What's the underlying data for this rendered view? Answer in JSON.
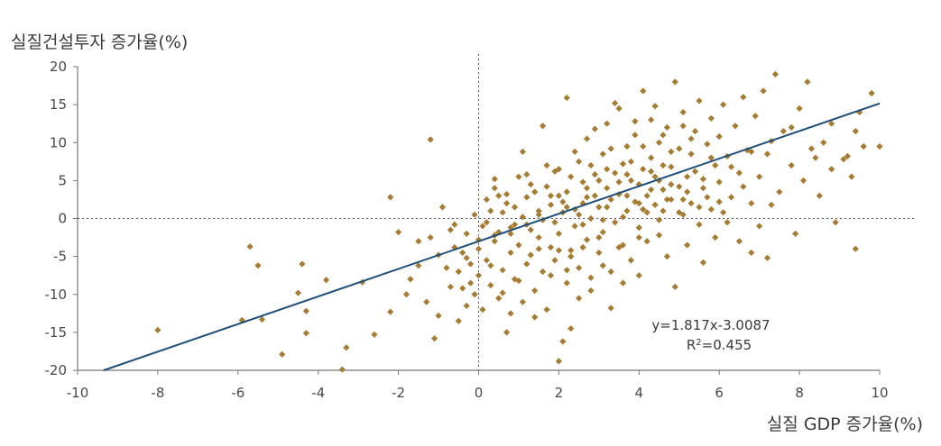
{
  "chart_data": {
    "type": "scatter",
    "title": "",
    "ylabel": "실질건설투자 증가율(%)",
    "xlabel": "실질 GDP 증가율(%)",
    "xlim": [
      -10,
      10
    ],
    "ylim": [
      -20,
      20
    ],
    "x_ticks": [
      "-10",
      "-8",
      "-6",
      "-4",
      "-2",
      "0",
      "2",
      "4",
      "6",
      "8",
      "10"
    ],
    "y_ticks": [
      "20",
      "15",
      "10",
      "5",
      "0",
      "-5",
      "-10",
      "-15",
      "-20"
    ],
    "reference_lines": {
      "x": 0,
      "y": 0,
      "style": "dotted"
    },
    "trendline": {
      "slope": 1.817,
      "intercept": -3.0087,
      "equation_label": "y=1.817x-3.0087",
      "r2_label_prefix": "R",
      "r2_label_sup": "2",
      "r2_label_value": "=0.455"
    },
    "colors": {
      "points": "#a47c35",
      "trendline": "#1f4e79",
      "axis": "#777777"
    },
    "points": [
      [
        -8.0,
        -14.7
      ],
      [
        -5.9,
        -13.4
      ],
      [
        -5.7,
        -3.7
      ],
      [
        -5.5,
        -6.2
      ],
      [
        -5.4,
        -13.3
      ],
      [
        -4.9,
        -17.9
      ],
      [
        -4.5,
        -9.8
      ],
      [
        -4.4,
        -6.0
      ],
      [
        -4.3,
        -12.2
      ],
      [
        -4.3,
        -15.1
      ],
      [
        -3.8,
        -8.1
      ],
      [
        -3.4,
        -19.9
      ],
      [
        -3.3,
        -17.0
      ],
      [
        -2.9,
        -8.4
      ],
      [
        -2.6,
        -15.3
      ],
      [
        -2.2,
        -12.3
      ],
      [
        -2.2,
        2.8
      ],
      [
        -2.0,
        -1.8
      ],
      [
        -1.8,
        -10.0
      ],
      [
        -1.7,
        -8.0
      ],
      [
        -1.5,
        -3.0
      ],
      [
        -1.5,
        -6.2
      ],
      [
        -1.3,
        -11.0
      ],
      [
        -1.2,
        10.4
      ],
      [
        -1.2,
        -2.5
      ],
      [
        -1.1,
        -15.8
      ],
      [
        -1.0,
        -4.8
      ],
      [
        -1.0,
        -12.8
      ],
      [
        -0.9,
        1.5
      ],
      [
        -0.8,
        -6.5
      ],
      [
        -0.7,
        -9.0
      ],
      [
        -0.7,
        -1.5
      ],
      [
        -0.6,
        -3.8
      ],
      [
        -0.5,
        -13.5
      ],
      [
        -0.5,
        -7.0
      ],
      [
        -0.4,
        -4.5
      ],
      [
        -0.3,
        -11.5
      ],
      [
        -0.3,
        -2.0
      ],
      [
        -0.2,
        -8.5
      ],
      [
        -0.2,
        -6.0
      ],
      [
        -0.1,
        0.5
      ],
      [
        -0.1,
        -10.0
      ],
      [
        0.0,
        -4.0
      ],
      [
        0.0,
        -7.5
      ],
      [
        0.1,
        -1.0
      ],
      [
        0.1,
        -12.0
      ],
      [
        0.2,
        2.5
      ],
      [
        0.2,
        -5.5
      ],
      [
        0.3,
        -8.8
      ],
      [
        0.3,
        1.0
      ],
      [
        0.4,
        -3.0
      ],
      [
        0.4,
        4.0
      ],
      [
        0.5,
        -10.5
      ],
      [
        0.5,
        -1.8
      ],
      [
        0.6,
        -6.8
      ],
      [
        0.6,
        0.8
      ],
      [
        0.7,
        3.2
      ],
      [
        0.7,
        -15.0
      ],
      [
        0.8,
        -4.5
      ],
      [
        0.8,
        -2.0
      ],
      [
        0.9,
        1.5
      ],
      [
        0.9,
        -8.0
      ],
      [
        1.0,
        -3.5
      ],
      [
        1.0,
        5.5
      ],
      [
        1.1,
        0.2
      ],
      [
        1.1,
        -11.0
      ],
      [
        1.2,
        -6.0
      ],
      [
        1.2,
        2.8
      ],
      [
        1.3,
        -1.5
      ],
      [
        1.3,
        -4.8
      ],
      [
        1.4,
        -9.5
      ],
      [
        1.4,
        3.5
      ],
      [
        1.5,
        -2.5
      ],
      [
        1.5,
        0.5
      ],
      [
        1.6,
        -7.0
      ],
      [
        1.6,
        12.2
      ],
      [
        1.7,
        4.2
      ],
      [
        1.7,
        -12.0
      ],
      [
        1.8,
        -3.8
      ],
      [
        1.8,
        1.8
      ],
      [
        1.9,
        -0.5
      ],
      [
        1.9,
        -5.5
      ],
      [
        2.0,
        6.5
      ],
      [
        2.0,
        -2.0
      ],
      [
        2.0,
        -18.8
      ],
      [
        2.1,
        -16.2
      ],
      [
        2.1,
        0.8
      ],
      [
        2.2,
        -8.5
      ],
      [
        2.2,
        3.5
      ],
      [
        2.2,
        15.9
      ],
      [
        2.3,
        -4.2
      ],
      [
        2.3,
        -14.5
      ],
      [
        2.4,
        1.2
      ],
      [
        2.4,
        -1.0
      ],
      [
        2.5,
        7.5
      ],
      [
        2.5,
        -6.5
      ],
      [
        2.6,
        2.0
      ],
      [
        2.6,
        4.8
      ],
      [
        2.7,
        -2.8
      ],
      [
        2.7,
        10.5
      ],
      [
        2.8,
        0.0
      ],
      [
        2.8,
        -9.5
      ],
      [
        2.9,
        3.0
      ],
      [
        2.9,
        5.8
      ],
      [
        3.0,
        -4.5
      ],
      [
        3.0,
        1.5
      ],
      [
        3.1,
        8.5
      ],
      [
        3.1,
        -1.8
      ],
      [
        3.2,
        12.5
      ],
      [
        3.2,
        4.0
      ],
      [
        3.3,
        -7.0
      ],
      [
        3.3,
        2.5
      ],
      [
        3.4,
        6.0
      ],
      [
        3.4,
        -0.5
      ],
      [
        3.5,
        14.5
      ],
      [
        3.5,
        3.2
      ],
      [
        3.6,
        -3.5
      ],
      [
        3.6,
        7.2
      ],
      [
        3.7,
        1.0
      ],
      [
        3.7,
        9.5
      ],
      [
        3.8,
        5.0
      ],
      [
        3.8,
        -5.5
      ],
      [
        3.9,
        2.2
      ],
      [
        3.9,
        11.0
      ],
      [
        4.0,
        4.5
      ],
      [
        4.0,
        -1.2
      ],
      [
        4.0,
        -7.5
      ],
      [
        4.1,
        16.8
      ],
      [
        4.1,
        6.5
      ],
      [
        4.2,
        3.0
      ],
      [
        4.2,
        -3.0
      ],
      [
        4.3,
        8.0
      ],
      [
        4.3,
        13.0
      ],
      [
        4.4,
        1.8
      ],
      [
        4.4,
        5.5
      ],
      [
        4.5,
        -2.2
      ],
      [
        4.5,
        10.0
      ],
      [
        4.6,
        7.0
      ],
      [
        4.6,
        3.8
      ],
      [
        4.7,
        -5.0
      ],
      [
        4.7,
        12.0
      ],
      [
        4.8,
        2.5
      ],
      [
        4.8,
        6.8
      ],
      [
        4.9,
        -9.0
      ],
      [
        4.9,
        18.0
      ],
      [
        5.0,
        4.2
      ],
      [
        5.0,
        9.2
      ],
      [
        5.1,
        0.5
      ],
      [
        5.1,
        14.0
      ],
      [
        5.2,
        5.5
      ],
      [
        5.2,
        -3.5
      ],
      [
        5.3,
        8.5
      ],
      [
        5.3,
        2.0
      ],
      [
        5.4,
        11.5
      ],
      [
        5.4,
        6.2
      ],
      [
        5.5,
        -0.8
      ],
      [
        5.5,
        15.5
      ],
      [
        5.6,
        4.0
      ],
      [
        5.6,
        -5.8
      ],
      [
        5.7,
        9.8
      ],
      [
        5.8,
        1.2
      ],
      [
        5.8,
        13.2
      ],
      [
        5.9,
        7.0
      ],
      [
        5.9,
        -2.5
      ],
      [
        6.0,
        10.8
      ],
      [
        6.0,
        4.8
      ],
      [
        6.1,
        15.0
      ],
      [
        6.2,
        -0.5
      ],
      [
        6.2,
        8.2
      ],
      [
        6.3,
        2.8
      ],
      [
        6.4,
        12.2
      ],
      [
        6.5,
        -3.0
      ],
      [
        6.5,
        6.0
      ],
      [
        6.6,
        16.0
      ],
      [
        6.7,
        9.0
      ],
      [
        6.8,
        -4.5
      ],
      [
        6.8,
        2.0
      ],
      [
        6.9,
        13.5
      ],
      [
        7.0,
        5.5
      ],
      [
        7.0,
        -1.0
      ],
      [
        7.1,
        16.8
      ],
      [
        7.2,
        8.5
      ],
      [
        7.2,
        -5.2
      ],
      [
        7.4,
        19.0
      ],
      [
        7.5,
        3.5
      ],
      [
        7.6,
        11.5
      ],
      [
        7.8,
        7.0
      ],
      [
        7.9,
        -2.0
      ],
      [
        8.0,
        14.5
      ],
      [
        8.1,
        5.0
      ],
      [
        8.2,
        18.0
      ],
      [
        8.4,
        8.0
      ],
      [
        8.5,
        3.0
      ],
      [
        8.6,
        10.0
      ],
      [
        8.8,
        6.5
      ],
      [
        8.9,
        -0.5
      ],
      [
        9.1,
        7.8
      ],
      [
        9.3,
        5.5
      ],
      [
        9.4,
        -4.0
      ],
      [
        9.4,
        11.5
      ],
      [
        9.5,
        14.0
      ],
      [
        9.6,
        9.5
      ],
      [
        9.8,
        16.5
      ],
      [
        10.0,
        9.5
      ],
      [
        -0.4,
        -9.2
      ],
      [
        0.6,
        -9.8
      ],
      [
        1.0,
        -8.2
      ],
      [
        1.5,
        -4.0
      ],
      [
        2.3,
        -5.0
      ],
      [
        2.6,
        -3.8
      ],
      [
        3.1,
        -6.2
      ],
      [
        3.6,
        -8.5
      ],
      [
        0.2,
        -0.5
      ],
      [
        0.7,
        2.0
      ],
      [
        1.3,
        4.5
      ],
      [
        1.9,
        6.2
      ],
      [
        2.4,
        8.8
      ],
      [
        2.9,
        11.8
      ],
      [
        3.4,
        15.2
      ],
      [
        3.9,
        12.8
      ],
      [
        4.4,
        14.8
      ],
      [
        1.1,
        8.8
      ],
      [
        0.4,
        5.2
      ],
      [
        0.9,
        -0.8
      ],
      [
        1.6,
        -0.2
      ],
      [
        2.1,
        2.2
      ],
      [
        2.7,
        4.0
      ],
      [
        3.2,
        1.5
      ],
      [
        3.7,
        3.0
      ],
      [
        4.2,
        0.8
      ],
      [
        4.7,
        2.5
      ],
      [
        5.2,
        3.5
      ],
      [
        5.7,
        2.8
      ],
      [
        6.1,
        0.8
      ],
      [
        6.6,
        4.2
      ],
      [
        7.3,
        1.8
      ],
      [
        -0.6,
        -0.8
      ],
      [
        -0.3,
        -5.2
      ],
      [
        0.0,
        -2.8
      ],
      [
        0.3,
        -6.2
      ],
      [
        0.8,
        -12.5
      ],
      [
        1.4,
        -13.0
      ],
      [
        2.5,
        -10.5
      ],
      [
        3.3,
        -11.8
      ],
      [
        1.8,
        -7.5
      ],
      [
        2.0,
        -4.2
      ],
      [
        2.2,
        -6.8
      ],
      [
        2.8,
        -7.8
      ],
      [
        3.0,
        -2.5
      ],
      [
        3.5,
        -3.8
      ],
      [
        4.0,
        -2.5
      ],
      [
        4.5,
        -0.2
      ],
      [
        5.0,
        0.8
      ],
      [
        5.5,
        1.5
      ],
      [
        6.0,
        2.2
      ],
      [
        4.1,
        9.5
      ],
      [
        4.6,
        11.0
      ],
      [
        5.1,
        12.2
      ],
      [
        3.3,
        9.2
      ],
      [
        2.8,
        7.0
      ],
      [
        2.3,
        5.5
      ],
      [
        1.7,
        7.0
      ],
      [
        1.2,
        5.8
      ],
      [
        0.5,
        3.0
      ],
      [
        3.8,
        7.5
      ],
      [
        4.3,
        6.2
      ],
      [
        4.8,
        8.8
      ],
      [
        5.3,
        10.5
      ],
      [
        5.8,
        8.0
      ],
      [
        6.3,
        6.8
      ],
      [
        6.8,
        8.8
      ],
      [
        7.3,
        10.2
      ],
      [
        7.8,
        12.0
      ],
      [
        8.3,
        9.2
      ],
      [
        8.8,
        12.5
      ],
      [
        9.2,
        8.2
      ],
      [
        2.0,
        3.0
      ],
      [
        2.2,
        1.5
      ],
      [
        2.5,
        0.5
      ],
      [
        2.7,
        2.8
      ],
      [
        3.0,
        5.0
      ],
      [
        3.2,
        6.5
      ],
      [
        3.5,
        4.8
      ],
      [
        3.7,
        5.8
      ],
      [
        4.0,
        2.0
      ],
      [
        4.3,
        3.8
      ],
      [
        4.5,
        5.0
      ],
      [
        4.8,
        4.5
      ],
      [
        1.5,
        1.0
      ],
      [
        1.8,
        3.0
      ],
      [
        1.2,
        -0.8
      ],
      [
        0.8,
        -1.2
      ],
      [
        0.4,
        -2.2
      ],
      [
        2.6,
        -0.8
      ],
      [
        3.1,
        -0.2
      ],
      [
        3.6,
        0.2
      ],
      [
        4.1,
        1.2
      ],
      [
        4.6,
        1.0
      ],
      [
        5.1,
        2.5
      ],
      [
        5.6,
        5.2
      ]
    ]
  }
}
